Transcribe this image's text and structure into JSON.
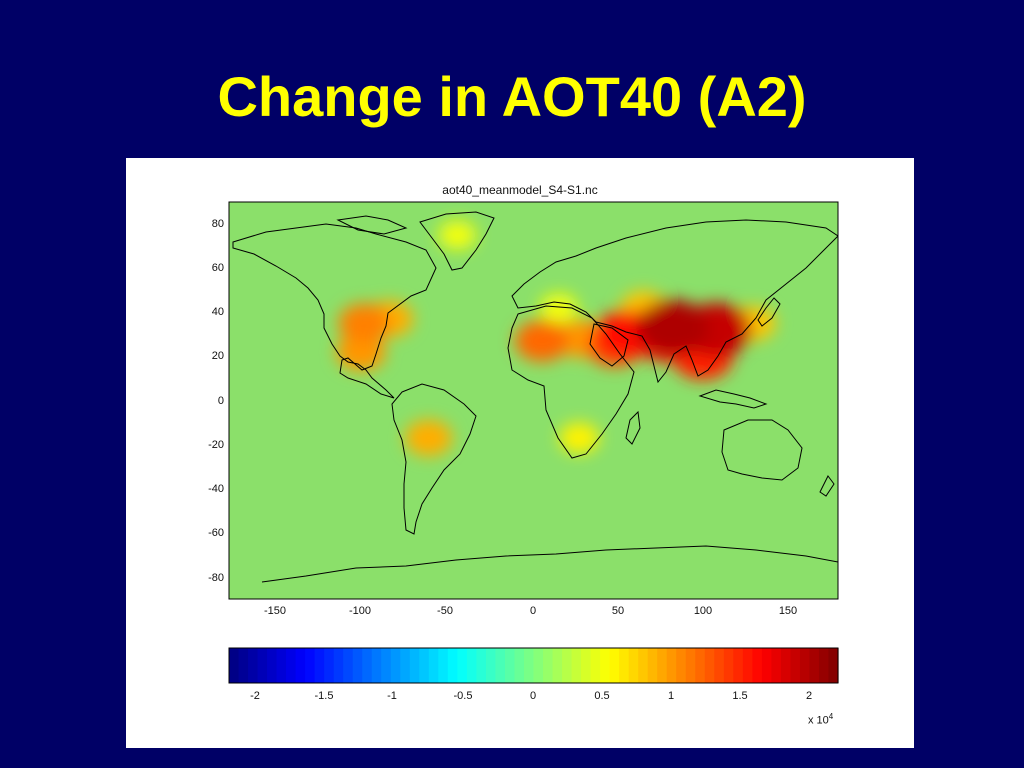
{
  "slide": {
    "title": "Change in AOT40 (A2)"
  },
  "map": {
    "title": "aot40_meanmodel_S4-S1.nc",
    "background_color": "#8be06a",
    "coastline_color": "#000000",
    "lon_ticks": [
      "-150",
      "-100",
      "-50",
      "0",
      "50",
      "100",
      "150"
    ],
    "lat_ticks": [
      "80",
      "60",
      "40",
      "20",
      "0",
      "-20",
      "-40",
      "-60",
      "-80"
    ],
    "lon_range": [
      -180,
      180
    ],
    "lat_range": [
      -90,
      90
    ],
    "hotspots": [
      {
        "region": "Western United States",
        "lon": -100,
        "lat": 35,
        "level": 1.1
      },
      {
        "region": "Mexico",
        "lon": -102,
        "lat": 22,
        "level": 1.0
      },
      {
        "region": "Eastern United States",
        "lon": -85,
        "lat": 37,
        "level": 0.9
      },
      {
        "region": "Sahara",
        "lon": 5,
        "lat": 27,
        "level": 1.2
      },
      {
        "region": "Egypt",
        "lon": 28,
        "lat": 28,
        "level": 1.0
      },
      {
        "region": "Arabian Peninsula",
        "lon": 48,
        "lat": 25,
        "level": 1.3
      },
      {
        "region": "Persian Gulf",
        "lon": 55,
        "lat": 30,
        "level": 1.6
      },
      {
        "region": "Tibetan Plateau",
        "lon": 82,
        "lat": 33,
        "level": 2.0
      },
      {
        "region": "Northern India",
        "lon": 78,
        "lat": 28,
        "level": 1.5
      },
      {
        "region": "Eastern China",
        "lon": 108,
        "lat": 32,
        "level": 1.9
      },
      {
        "region": "Southeast Asia",
        "lon": 100,
        "lat": 20,
        "level": 1.5
      },
      {
        "region": "Central Asia",
        "lon": 65,
        "lat": 42,
        "level": 0.8
      },
      {
        "region": "Southern Europe",
        "lon": 15,
        "lat": 42,
        "level": 0.5
      },
      {
        "region": "Japan",
        "lon": 130,
        "lat": 35,
        "level": 0.8
      },
      {
        "region": "Bolivia",
        "lon": -62,
        "lat": -17,
        "level": 0.9
      },
      {
        "region": "Southern Africa",
        "lon": 27,
        "lat": -17,
        "level": 0.6
      },
      {
        "region": "Greenland",
        "lon": -45,
        "lat": 75,
        "level": 0.5
      }
    ]
  },
  "colorbar": {
    "ticks": [
      "-2",
      "-1.5",
      "-1",
      "-0.5",
      "0",
      "0.5",
      "1",
      "1.5",
      "2"
    ],
    "range": [
      -2.2,
      2.2
    ],
    "multiplier_base": "x 10",
    "multiplier_exponent": "4",
    "colormap": "jet"
  }
}
